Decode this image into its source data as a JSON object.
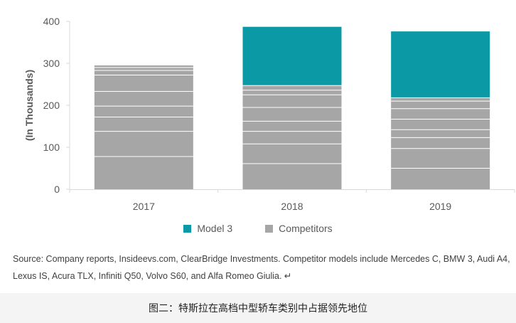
{
  "chart_data": {
    "type": "bar",
    "stacked": true,
    "categories": [
      "2017",
      "2018",
      "2019"
    ],
    "series": [
      {
        "name": "Competitors",
        "color": "#a6a6a6",
        "values": [
          295,
          247,
          218
        ]
      },
      {
        "name": "Model 3",
        "color": "#0b9aa5",
        "values": [
          0,
          140,
          158
        ]
      }
    ],
    "competitor_segment_boundaries": [
      [
        78,
        138,
        172,
        198,
        233,
        272,
        283,
        290
      ],
      [
        61,
        108,
        138,
        162,
        195,
        225,
        236
      ],
      [
        50,
        97,
        123,
        142,
        167,
        192,
        210
      ]
    ],
    "ylabel": "(In Thousands)",
    "ylim": [
      0,
      400
    ],
    "yticks": [
      0,
      100,
      200,
      300,
      400
    ],
    "ytick_labels": [
      "0",
      "100",
      "200",
      "300",
      "400"
    ],
    "grid": false,
    "legend_position": "bottom"
  },
  "legend": [
    {
      "label": "Model 3",
      "color": "#0b9aa5"
    },
    {
      "label": "Competitors",
      "color": "#a6a6a6"
    }
  ],
  "source_text": "Source: Company reports, Insideevs.com, ClearBridge Investments. Competitor models include Mercedes C, BMW 3, Audi A4, Lexus IS, Acura TLX, Infiniti Q50, Volvo S60, and Alfa Romeo Giulia. ↵",
  "caption": "图二：特斯拉在高档中型轿车类别中占据领先地位"
}
